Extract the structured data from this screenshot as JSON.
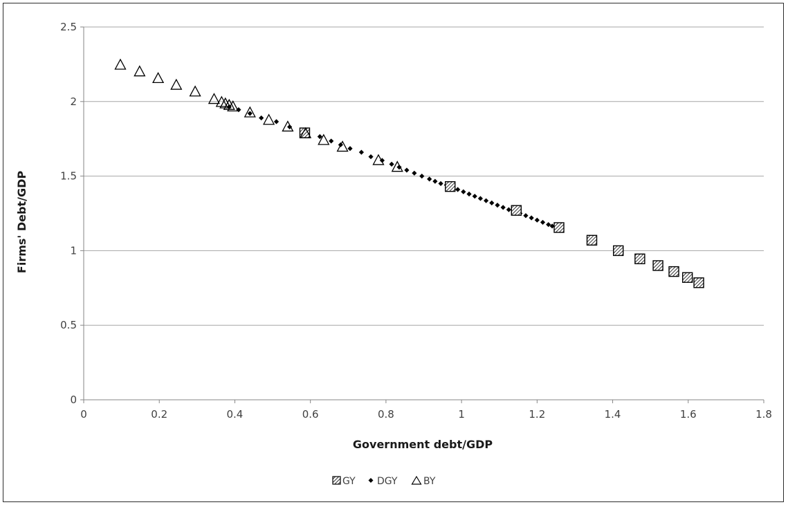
{
  "chart_data": {
    "type": "scatter",
    "title": "",
    "xlabel": "Government debt/GDP",
    "ylabel": "Firms' Debt/GDP",
    "xlim": [
      0,
      1.8
    ],
    "ylim": [
      0,
      2.5
    ],
    "x_ticks": [
      0,
      0.2,
      0.4,
      0.6,
      0.8,
      1,
      1.2,
      1.4,
      1.6,
      1.8
    ],
    "x_tick_labels": [
      "0",
      "0.2",
      "0.4",
      "0.6",
      "0.8",
      "1",
      "1.2",
      "1.4",
      "1.6",
      "1.8"
    ],
    "y_ticks": [
      0,
      0.5,
      1,
      1.5,
      2,
      2.5
    ],
    "y_tick_labels": [
      "0",
      "0.5",
      "1",
      "1.5",
      "2",
      "2.5"
    ],
    "grid": "horizontal",
    "legend_position": "bottom",
    "series": [
      {
        "name": "GY",
        "marker": "hatched-square",
        "color": "#000000",
        "points": [
          [
            0.585,
            1.79
          ],
          [
            0.97,
            1.43
          ],
          [
            1.145,
            1.27
          ],
          [
            1.258,
            1.155
          ],
          [
            1.345,
            1.07
          ],
          [
            1.415,
            1.0
          ],
          [
            1.472,
            0.945
          ],
          [
            1.52,
            0.9
          ],
          [
            1.562,
            0.86
          ],
          [
            1.598,
            0.82
          ],
          [
            1.628,
            0.785
          ]
        ]
      },
      {
        "name": "DGY",
        "marker": "diamond",
        "color": "#000000",
        "points": [
          [
            0.385,
            1.965
          ],
          [
            0.41,
            1.945
          ],
          [
            0.44,
            1.92
          ],
          [
            0.47,
            1.89
          ],
          [
            0.51,
            1.865
          ],
          [
            0.545,
            1.83
          ],
          [
            0.585,
            1.8
          ],
          [
            0.625,
            1.765
          ],
          [
            0.655,
            1.735
          ],
          [
            0.68,
            1.71
          ],
          [
            0.705,
            1.685
          ],
          [
            0.735,
            1.66
          ],
          [
            0.76,
            1.63
          ],
          [
            0.79,
            1.605
          ],
          [
            0.815,
            1.58
          ],
          [
            0.835,
            1.56
          ],
          [
            0.855,
            1.54
          ],
          [
            0.875,
            1.52
          ],
          [
            0.895,
            1.5
          ],
          [
            0.915,
            1.48
          ],
          [
            0.93,
            1.465
          ],
          [
            0.945,
            1.45
          ],
          [
            0.96,
            1.44
          ],
          [
            0.975,
            1.425
          ],
          [
            0.99,
            1.41
          ],
          [
            1.005,
            1.395
          ],
          [
            1.02,
            1.38
          ],
          [
            1.035,
            1.365
          ],
          [
            1.05,
            1.35
          ],
          [
            1.065,
            1.335
          ],
          [
            1.08,
            1.32
          ],
          [
            1.095,
            1.305
          ],
          [
            1.11,
            1.29
          ],
          [
            1.125,
            1.275
          ],
          [
            1.14,
            1.265
          ],
          [
            1.155,
            1.25
          ],
          [
            1.17,
            1.235
          ],
          [
            1.185,
            1.22
          ],
          [
            1.2,
            1.205
          ],
          [
            1.215,
            1.19
          ],
          [
            1.23,
            1.175
          ],
          [
            1.24,
            1.165
          ]
        ]
      },
      {
        "name": "BY",
        "marker": "open-triangle",
        "color": "#000000",
        "points": [
          [
            0.097,
            2.245
          ],
          [
            0.148,
            2.2
          ],
          [
            0.197,
            2.155
          ],
          [
            0.245,
            2.11
          ],
          [
            0.295,
            2.065
          ],
          [
            0.345,
            2.015
          ],
          [
            0.365,
            1.995
          ],
          [
            0.375,
            1.985
          ],
          [
            0.385,
            1.975
          ],
          [
            0.395,
            1.965
          ],
          [
            0.44,
            1.925
          ],
          [
            0.49,
            1.875
          ],
          [
            0.54,
            1.83
          ],
          [
            0.587,
            1.785
          ],
          [
            0.635,
            1.74
          ],
          [
            0.685,
            1.695
          ],
          [
            0.78,
            1.605
          ],
          [
            0.83,
            1.56
          ]
        ]
      }
    ]
  }
}
